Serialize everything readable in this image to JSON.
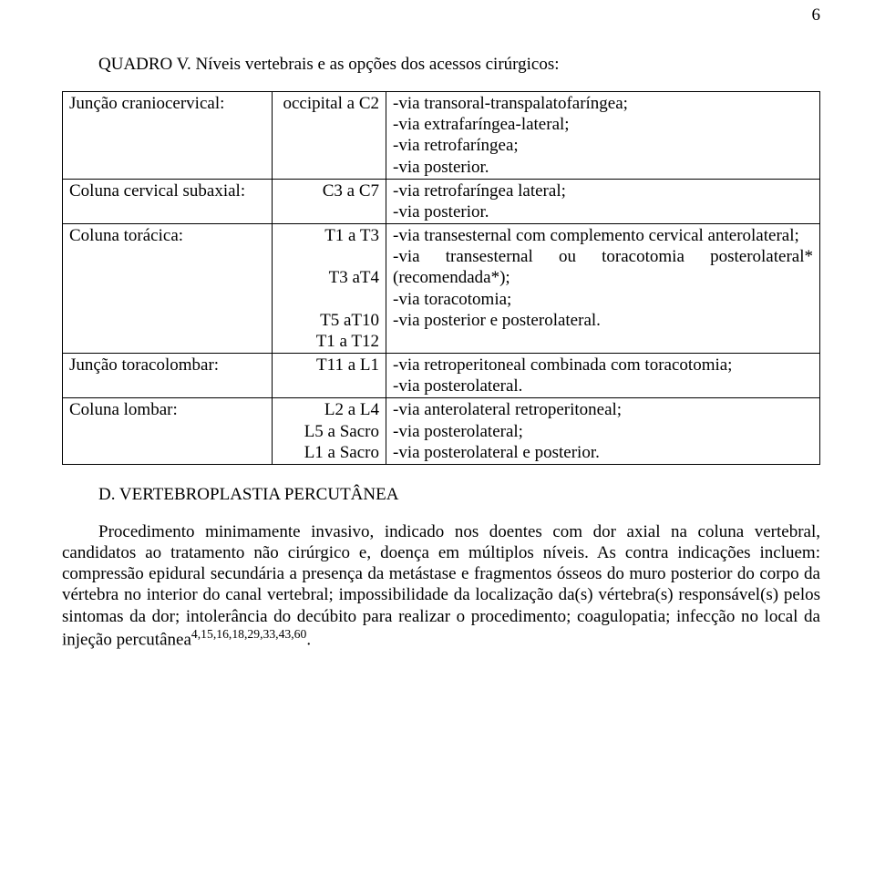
{
  "pagenum": "6",
  "title": "QUADRO V. Níveis vertebrais e as opções dos acessos cirúrgicos:",
  "rows": [
    {
      "label": "Junção craniocervical:",
      "levels": "occipital a C2",
      "approach": "-via transoral-transpalatofaríngea;\n-via extrafaríngea-lateral;\n-via retrofaríngea;\n-via posterior."
    },
    {
      "label": "Coluna cervical subaxial:",
      "levels": "C3 a C7",
      "approach": "-via retrofaríngea lateral;\n-via posterior."
    },
    {
      "label": "Coluna torácica:",
      "levels": "T1 a T3\n\nT3 aT4\n\nT5 aT10\nT1 a T12",
      "approach": "-via  transesternal  com  complemento cervical anterolateral;\n-via  transesternal  ou  toracotomia posterolateral* (recomendada*);\n-via toracotomia;\n-via posterior e posterolateral."
    },
    {
      "label": "Junção toracolombar:",
      "levels": "T11 a L1",
      "approach": "-via  retroperitoneal  combinada  com toracotomia;\n-via posterolateral."
    },
    {
      "label": "Coluna lombar:",
      "levels": "L2 a L4\nL5 a Sacro\nL1 a Sacro",
      "approach": "-via anterolateral retroperitoneal;\n-via posterolateral;\n-via posterolateral e posterior."
    }
  ],
  "subhead": "D. VERTEBROPLASTIA PERCUTÂNEA",
  "para_pre": "Procedimento minimamente invasivo, indicado nos doentes com dor axial na coluna vertebral, candidatos ao tratamento não cirúrgico e, doença em múltiplos níveis. As contra indicações incluem: compressão epidural secundária a presença da metástase e fragmentos ósseos do muro posterior do corpo da vértebra no interior do canal vertebral; impossibilidade da localização da(s) vértebra(s) responsável(s) pelos sintomas da dor; intolerância do decúbito para realizar o procedimento; coagulopatia; infecção no local da injeção percutânea",
  "para_sup": "4,15,16,18,29,33,43,60",
  "para_post": "."
}
